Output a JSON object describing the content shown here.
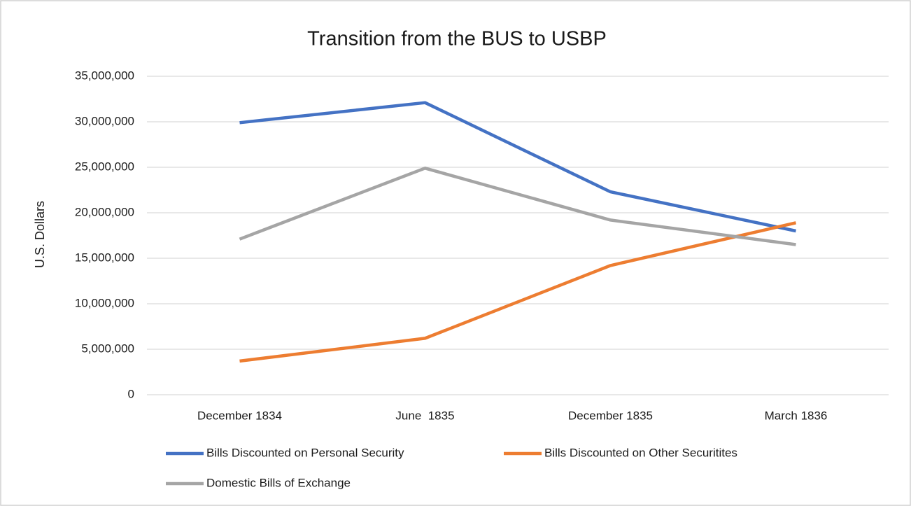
{
  "chart_data": {
    "type": "line",
    "title": "Transition from the BUS to USBP",
    "y_label": "U.S. Dollars",
    "categories": [
      "December 1834",
      "June  1835",
      "December 1835",
      "March 1836"
    ],
    "series": [
      {
        "name": "Bills Discounted on Personal Security",
        "color": "#4472c4",
        "values": [
          29900000,
          32100000,
          22300000,
          18000000
        ]
      },
      {
        "name": "Bills Discounted on Other Securitites",
        "color": "#ed7d31",
        "values": [
          3700000,
          6200000,
          14200000,
          18900000
        ]
      },
      {
        "name": "Domestic Bills of Exchange",
        "color": "#a5a5a5",
        "values": [
          17100000,
          24900000,
          19200000,
          16500000
        ]
      }
    ],
    "ylim": [
      0,
      35000000
    ],
    "yticks": [
      0,
      {
        "value": 5000000,
        "label": "5,000,000"
      },
      {
        "value": 10000000,
        "label": "10,000,000"
      },
      {
        "value": 15000000,
        "label": "15,000,000"
      },
      {
        "value": 20000000,
        "label": "20,000,000"
      },
      {
        "value": 25000000,
        "label": "25,000,000"
      },
      {
        "value": 30000000,
        "label": "30,000,000"
      },
      {
        "value": 35000000,
        "label": "35,000,000"
      }
    ],
    "grid": true,
    "legend": "bottom"
  }
}
